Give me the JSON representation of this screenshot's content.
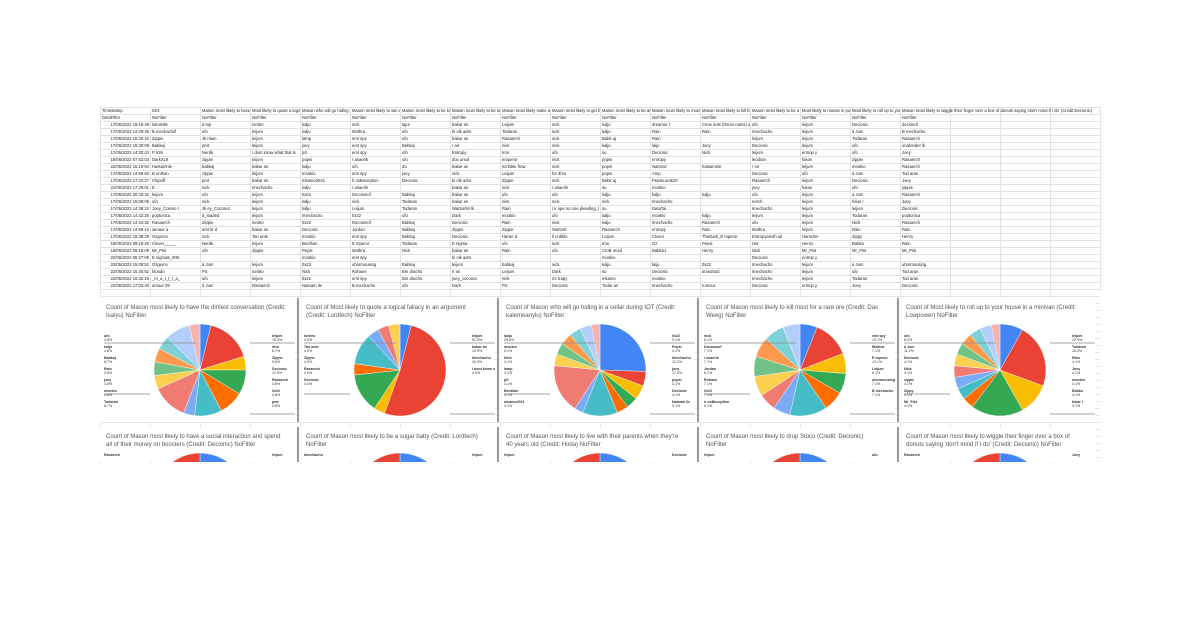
{
  "sheet": {
    "headers": [
      "Timestamp",
      "IGN",
      "Mason most likely to have the dirtiest conversation",
      "Most likely to quote a logical fallacy in an argument",
      "Mason who will go hiding in a cellar",
      "Mason most likely to win a fight",
      "Mason most likely to be kicked",
      "Mason most likely to be late",
      "Mason most likely make alts are me",
      "Mason most likely to get banned",
      "Mason most likely to be at spawn",
      "Mason most likely to murder",
      "Mason most likely to kill for ore",
      "Mason most likely to be a baby",
      "Most likely to mouse in public",
      "Most likely to roll up to your house",
      "Mason most likely to wiggle their finger over a box of donuts saying 'don't mind if I do' (Credit:Decionic)"
    ],
    "filters": [
      "DebtFilter",
      "NoFilter",
      "NoFilter",
      "NoFilter",
      "NoFilter",
      "NoFilter",
      "NoFilter",
      "NoFilter",
      "NoFilter",
      "NoFilter",
      "NoFilter",
      "NoFilter",
      "NoFilter",
      "NoFilter",
      "NoFilter",
      "NoFilter",
      "NoFilter"
    ],
    "rows": [
      [
        "17/05/2022 19:19:49",
        "lukole66",
        "à mp",
        "Ionitro",
        "kalju",
        "nick",
        "lajur",
        "bakar an",
        "Leijum",
        "nick",
        "kalju",
        "dreamur l",
        "Crew nuts (thrum nams) ar",
        "ufo",
        "leijum",
        "Decionic",
        "decionof"
      ],
      [
        "17/05/2022 14:29:35",
        "B mechachill",
        "ufo",
        "leijum",
        "kalju",
        "Mothra",
        "ufo",
        "bi oik adro",
        "Todaran",
        "nick",
        "kalju",
        "Rain",
        "Rain",
        "Imechacho",
        "leijum",
        "à Jum",
        "B mechacho"
      ],
      [
        "17/05/2022 15:20:10",
        "Zippie",
        "Jk nlam",
        "leijum",
        "lamp",
        "emt spy",
        "ufo",
        "bakar an",
        "Rasaerch",
        "nick",
        "Babk aj",
        "Rain",
        "",
        "leijum",
        "leijum",
        "Todaran",
        "Rasaerch"
      ],
      [
        "17/05/2022 15:30:08",
        "Babkaj",
        "pmt",
        "leijum",
        "joey",
        "emt spy",
        "Babkaj",
        "r ait",
        "nick",
        "nick",
        "kalju",
        "laiju",
        "Jocy",
        "Decionic",
        "leijum",
        "ufo",
        "unafonder lk"
      ],
      [
        "17/05/2022 14:30:43",
        "P 526",
        "Nerdk",
        "I dont know what that is",
        "pS",
        "emt spy",
        "ufo",
        "Entropy",
        "Iron",
        "ufo",
        "su",
        "Decionic",
        "Nick",
        "leijum",
        "entrop y",
        "ufo",
        "Joey"
      ],
      [
        "18/05/2022 07:52:03",
        "DarkXL8",
        "zippie",
        "leijum",
        "popsi",
        "r asaerik",
        "ufo",
        "dox ursuf",
        "emperor",
        "nick",
        "popsi",
        "entropy",
        "",
        "leodran",
        "fukon",
        "zippie",
        "Rasaerch"
      ],
      [
        "22/05/2022 15:19:54",
        "Hatsamnie",
        "babkaj",
        "bakar an",
        "kalju",
        "ufo",
        "Zo",
        "bakar an",
        "scribble frow",
        "nick",
        "popsi",
        "Natonol",
        "hatsamnie",
        "r on",
        "leijum",
        "mookio",
        "Rasaerch"
      ],
      [
        "17/05/2022 14:56:52",
        "B enthan",
        "zippie",
        "leijum",
        "mookio",
        "emt spy",
        "joey",
        "nick",
        "Leijum",
        "for dmo",
        "popsi",
        "Amp",
        "",
        "Decionic",
        "ufo",
        "à Jum",
        "Tod aran"
      ],
      [
        "17/05/2022 17:24:27",
        "Chipoff",
        "pmt",
        "bakar an",
        "mkamo2021",
        "lr oxBoception",
        "Decionic",
        "bi oik adro",
        "Zippie",
        "nick",
        "Babk aj",
        "PepsiLorak20",
        "",
        "Rasaerch",
        "leijum",
        "Decionic",
        "Joey"
      ],
      [
        "21/05/2022 17:29:01",
        "E",
        "nick",
        "Imechacho",
        "kalju",
        "r asaerik",
        "",
        "bakar an",
        "nick",
        "r asaerik",
        "su",
        "mookio",
        "",
        "joey",
        "fukon",
        "ufo",
        "yippie"
      ],
      [
        "17/05/2022 20:33:32",
        "leijum",
        "ufo",
        "leijum",
        "0x22",
        "Docosmof",
        "Babkaj",
        "bakar an",
        "ufo",
        "ufo",
        "kalju",
        "kalju",
        "kalju",
        "ufo",
        "leijum",
        "à Jum",
        "Rasaerch"
      ],
      [
        "17/05/2022 15:08:05",
        "ufo",
        "nick",
        "leijum",
        "kalju",
        "nick",
        "Todaran",
        "bakar an",
        "nick",
        "nick",
        "nick",
        "Imechacho",
        "",
        "nerch",
        "leijum",
        "fukar l",
        "Joey"
      ],
      [
        "17/05/2022 14:39:24",
        "Joey_Cosmo t",
        "Jk ey_Coconut",
        "leijum",
        "kalju",
        "Leijum",
        "Todaran",
        "Wartonfel lk",
        "Rain",
        "I k ope no one pleading_l",
        "su",
        "DetaTai",
        "",
        "Imechacho",
        "leijum",
        "leijum",
        "Decionic"
      ],
      [
        "17/05/2022 14:42:26",
        "poptonica",
        "d_loaded",
        "leijum",
        "Imechacho",
        "0x22",
        "ufo",
        "Dark",
        "mookio",
        "ufo",
        "kalju",
        "mookio",
        "kalju",
        "leijum",
        "leijum",
        "Todaran",
        "poptonica"
      ],
      [
        "17/05/2022 14:44:32",
        "Rasaerch",
        "Zippie",
        "Ionitro",
        "0x22",
        "Docosmof",
        "Babkaj",
        "Decionic",
        "Rain",
        "nick",
        "kalju",
        "Imechacho",
        "Rasaerch",
        "ufo",
        "leijum",
        "Nick",
        "Rasaerch"
      ],
      [
        "17/05/2022 14:56:12",
        "iamaur a",
        "amt kr d",
        "bakar an",
        "Decionic",
        "Jordan",
        "Babkaj",
        "Zippie",
        "Zippie",
        "Warlord",
        "Rasaerch",
        "entropy",
        "Rain",
        "Mothra",
        "leijum",
        "Rain",
        "Rain"
      ],
      [
        "17/05/2022 15:38:29",
        "Ozgemo",
        "nick",
        "Tan ants",
        "mookio",
        "emt spy",
        "Babkaj",
        "Decionic",
        "Harter d",
        "Il crdible",
        "Leijum",
        "Clover",
        "TheDark_E mperor",
        "Entropyannih ail",
        "HarmZer",
        "Zippy",
        "Henry"
      ],
      [
        "18/05/2022 09:19:20",
        "Clover_____",
        "Nerdk",
        "leijum",
        "Benthan",
        "E mperor",
        "Todaran",
        "E nigma",
        "ufo",
        "nick",
        "Iron",
        "Oz",
        "Pepsi",
        "Hot",
        "Henry",
        "Babka",
        "Rain"
      ],
      [
        "18/05/2022 09:18:09",
        "Mr_Pist",
        "ufo",
        "Zippie",
        "Pepsi",
        "Mothra",
        "Nick",
        "bakar an",
        "Rain",
        "ufo",
        "CroB mouf",
        "BabkaJ",
        "Henry",
        "Nick",
        "Mr_Pist",
        "Mr_Pist",
        "Mr_Pist"
      ],
      [
        "22/05/2022 05:27:06",
        "E nigma5_008",
        "",
        "",
        "mookio",
        "emt spy",
        "",
        "bi oik adro",
        "",
        "",
        "mookio",
        "",
        "",
        "Decionic",
        "entrop y",
        "",
        ""
      ],
      [
        "22/05/2022 15:09:52",
        "Ozgemo",
        "à Jum",
        "leijum",
        "0x22",
        "uhormousing",
        "Babkaj",
        "leijum",
        "babkaj",
        "nick",
        "kalju",
        "laiju",
        "0x22",
        "Imechacho",
        "leijum",
        "à Jum",
        "uhormousing"
      ],
      [
        "22/05/2022 15:30:52",
        "hloodo",
        "PS",
        "Ionitro",
        "Nick",
        "Rohane",
        "Bm dracho",
        "Ir on",
        "Leijum",
        "Dark",
        "su",
        "Decionic",
        "amndroid",
        "Imechacho",
        "leijum",
        "ufo",
        "Tod aran"
      ],
      [
        "22/05/2022 15:32:19",
        "_m_a_t_t_r_a_",
        "ufo",
        "leijum",
        "0x22",
        "emt spy",
        "Bm dracho",
        "joey_coconut",
        "nick",
        "mr trapy",
        "mkamo",
        "mookio",
        "",
        "Imechacho",
        "leijum",
        "Todaran",
        "Tod aran"
      ],
      [
        "22/05/2022 17:03:33",
        "amour 09",
        "à Jum",
        "Rasaerch",
        "Natnam ile",
        "B mechacho",
        "ufo",
        "Dark",
        "PS",
        "Decionic",
        "Todar an",
        "Imechacho",
        "rumour",
        "Decionic",
        "entrop y",
        "Joey",
        "Decionic"
      ]
    ]
  },
  "palette": [
    "#4285f4",
    "#ea4335",
    "#fbbc04",
    "#34a853",
    "#ff6d01",
    "#46bdc6",
    "#7baaf7",
    "#f07b72",
    "#fcd04f",
    "#71c287",
    "#ff994d",
    "#7ed1d7",
    "#b3cefb",
    "#f7b4ae"
  ],
  "chart_data": [
    {
      "type": "pie",
      "title": "Count of Mason most likely to have the dirtiest conversation (Credit: Isaiyu) NoFilter",
      "labels": [
        "ufo",
        "leijum",
        "kalju",
        "nick",
        "Babkaj",
        "Zippie",
        "Rain",
        "Decionic",
        "joey",
        "Rasaerch",
        "mookio",
        "0x22",
        "Todaran",
        "pmt"
      ],
      "values": [
        4,
        17,
        5,
        9,
        9,
        10,
        4,
        13,
        5,
        5,
        5,
        5,
        9,
        4
      ]
    },
    {
      "type": "pie",
      "title": "Count of Most likely to quote a logical fallacy in an argument (Credit: Lordtech) NoFilter",
      "labels": [
        "Ionitro",
        "leijum",
        "Tan ants",
        "bakar an",
        "Zippie",
        "Imechacho",
        "Rasaerch",
        "I dont know what that is",
        "Decionic"
      ],
      "values": [
        4,
        52,
        4,
        14,
        4,
        11,
        4,
        4,
        4
      ]
    },
    {
      "type": "pie",
      "title": "Count of Mason who will go hiding in a cellar during IOT (Credit: kalemeanylu) NoFilter",
      "labels": [
        "kalju",
        "0x22",
        "mookio",
        "Pepsi",
        "Nick",
        "Imechacho",
        "lamp",
        "joey",
        "pS",
        "popsi",
        "Benthan",
        "Decionic",
        "mkamo2021",
        "Natnam ile"
      ],
      "values": [
        25,
        5,
        5,
        4,
        4,
        12,
        3,
        17,
        4,
        4,
        4,
        4,
        4,
        3
      ]
    },
    {
      "type": "pie",
      "title": "Count of Mason most likely to kill most for a rare ore (Credit: Das Weeg) NoFilter",
      "labels": [
        "nick",
        "emt spy",
        "Docosmof",
        "Mothra",
        "r asaerik",
        "E mperor",
        "Jordan",
        "Leijum",
        "Rohane",
        "uhormousing",
        "0x22",
        "B mechacho",
        "lr oxBoception"
      ],
      "values": [
        6,
        13,
        7,
        7,
        7,
        13,
        6,
        6,
        7,
        7,
        7,
        7,
        6
      ]
    },
    {
      "type": "pie",
      "title": "Count of Most likely to roll up to your house in a minivan (Credit: Lowpower) NoFilter",
      "labels": [
        "ufo",
        "leijum",
        "à Jum",
        "Todaran",
        "Decionic",
        "Rain",
        "Nick",
        "Joey",
        "zippie",
        "mookio",
        "Zippy",
        "Babka",
        "Mr_Pist",
        "fukar l"
      ],
      "values": [
        8,
        22,
        11,
        18,
        4,
        4,
        4,
        4,
        4,
        4,
        4,
        4,
        4,
        3
      ]
    },
    {
      "type": "pie",
      "title": "Count of Mason most likely to have a social interaction and spend all of their money on boosters (Credit: Decionic) NoFilter",
      "labels": [
        "Rasaerch",
        "leijum"
      ],
      "values": [
        40,
        60
      ]
    },
    {
      "type": "pie",
      "title": "Count of Mason most likely to be a sugar baby (Credit: Lordtech) NoFilter",
      "labels": [
        "Imechacho",
        "leijum"
      ],
      "values": [
        45,
        55
      ]
    },
    {
      "type": "pie",
      "title": "Count of Mason most likely to live with their parents when they're 40 years old (Credit: Hoda) NoFilter",
      "labels": [
        "leijum",
        "Decionic"
      ],
      "values": [
        35,
        65
      ]
    },
    {
      "type": "pie",
      "title": "Count of Mason most likely to drop Stoco (Credit: Decionic) NoFilter",
      "labels": [
        "leijum",
        "ufo"
      ],
      "values": [
        50,
        50
      ]
    },
    {
      "type": "pie",
      "title": "Count of Mason most likely to wiggle their finger over a box of donuts saying 'don't mind if I do' (Credit: Decionic) NoFilter",
      "labels": [
        "Rasaerch",
        "Joey"
      ],
      "values": [
        40,
        60
      ]
    }
  ]
}
